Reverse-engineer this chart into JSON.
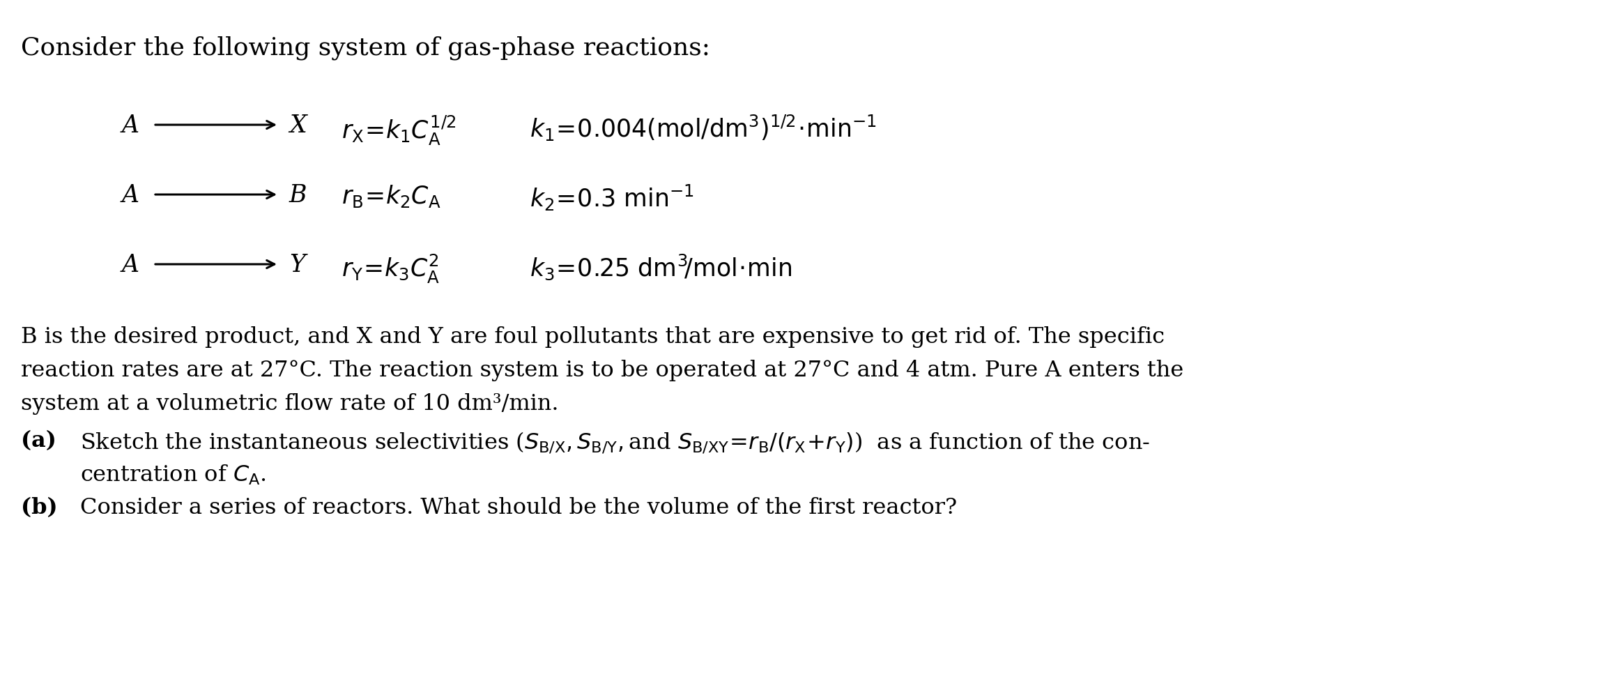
{
  "bg_color": "#ffffff",
  "text_color": "#000000",
  "fig_w": 23.0,
  "fig_h": 9.74,
  "dpi": 100,
  "title": "Consider the following system of gas-phase reactions:",
  "rxn1_A": "A",
  "rxn1_X": "X",
  "rxn1_rate": "$r_{\\mathrm{X}}\\!=\\!k_1C_{\\mathrm{A}}^{1/2}$",
  "rxn1_k": "$k_1\\!=\\!0.004(\\mathrm{mol/dm}^3)^{1/2}\\!\\cdot\\!\\mathrm{min}^{-1}$",
  "rxn2_A": "A",
  "rxn2_B": "B",
  "rxn2_rate": "$r_{\\mathrm{B}}\\!=\\!k_2C_{\\mathrm{A}}$",
  "rxn2_k": "$k_2\\!=\\!0.3\\ \\mathrm{min}^{-1}$",
  "rxn3_A": "A",
  "rxn3_Y": "Y",
  "rxn3_rate": "$r_{\\mathrm{Y}}\\!=\\!k_3C_{\\mathrm{A}}^2$",
  "rxn3_k": "$k_3\\!=\\!0.25\\ \\mathrm{dm}^3\\!/\\mathrm{mol}\\!\\cdot\\!\\mathrm{min}$",
  "para_line1": "B is the desired product, and X and Y are foul pollutants that are expensive to get rid of. The specific",
  "para_line2": "reaction rates are at 27°C. The reaction system is to be operated at 27°C and 4 atm. Pure A enters the",
  "para_line3": "system at a volumetric flow rate of 10 dm³/min.",
  "part_a_label": "(a)",
  "part_a_line1": "Sketch the instantaneous selectivities ($S_{\\mathrm{B/X}},S_{\\mathrm{B/Y}},$and $S_{\\mathrm{B/XY}}\\!=\\!r_{\\mathrm{B}}/(r_{\\mathrm{X}}\\!+\\!r_{\\mathrm{Y}})$)  as a function of the con-",
  "part_a_line2": "centration of $C_{\\mathrm{A}}$.",
  "part_b_label": "(b)",
  "part_b_line1": "Consider a series of reactors. What should be the volume of the first reactor?",
  "fs_title": 26,
  "fs_body": 23,
  "fs_rxn": 25
}
